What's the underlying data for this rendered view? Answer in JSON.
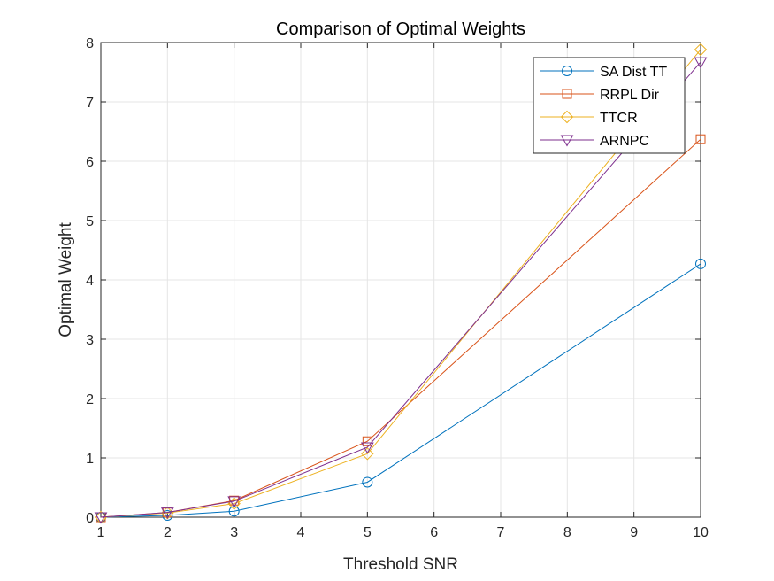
{
  "chart_data": {
    "type": "line",
    "title": "Comparison of Optimal Weights",
    "xlabel": "Threshold SNR",
    "ylabel": "Optimal Weight",
    "xlim": [
      1,
      10
    ],
    "ylim": [
      0,
      8
    ],
    "xticks": [
      1,
      2,
      3,
      4,
      5,
      6,
      7,
      8,
      9,
      10
    ],
    "yticks": [
      0,
      1,
      2,
      3,
      4,
      5,
      6,
      7,
      8
    ],
    "grid": true,
    "legend_position": "top-right",
    "x": [
      1,
      2,
      3,
      5,
      10
    ],
    "series": [
      {
        "name": "SA Dist TT",
        "values": [
          0,
          0.03,
          0.1,
          0.59,
          4.27
        ],
        "color": "#0072BD",
        "marker": "circle"
      },
      {
        "name": "RRPL Dir",
        "values": [
          0,
          0.08,
          0.28,
          1.28,
          6.37
        ],
        "color": "#D95319",
        "marker": "square"
      },
      {
        "name": "TTCR",
        "values": [
          0,
          0.07,
          0.23,
          1.07,
          7.88
        ],
        "color": "#EDB120",
        "marker": "diamond"
      },
      {
        "name": "ARNPC",
        "values": [
          0,
          0.08,
          0.27,
          1.18,
          7.67
        ],
        "color": "#7E2F8E",
        "marker": "triangle-down"
      }
    ]
  }
}
